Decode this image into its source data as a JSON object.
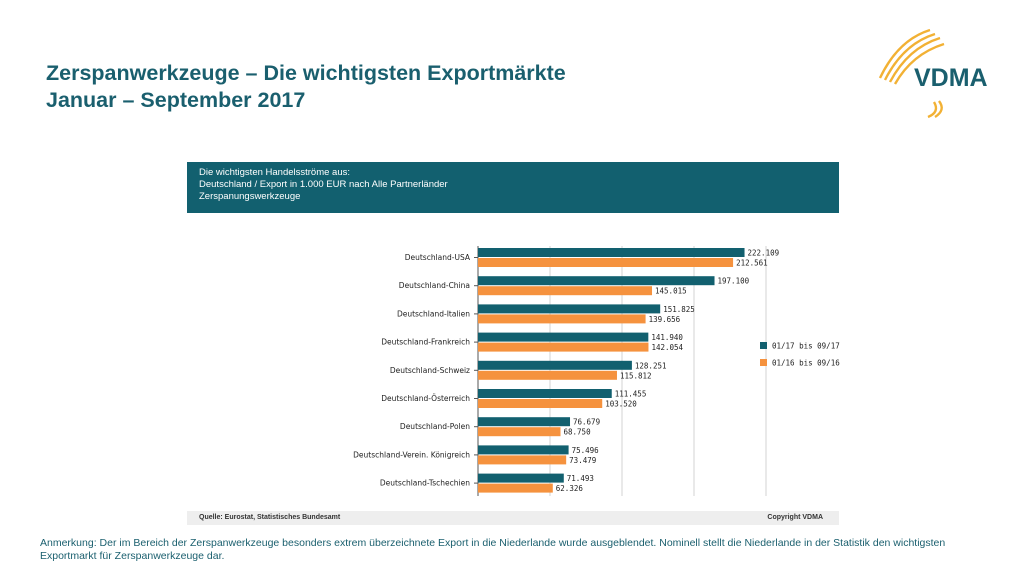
{
  "slide": {
    "title_line1": "Zerspanwerkzeuge – Die wichtigsten Exportmärkte",
    "title_line2": "Januar – September 2017",
    "logo_text": "VDMA",
    "source": "Quelle: Eurostat, Statistisches Bundesamt",
    "copyright": "Copyright VDMA",
    "note": "Anmerkung: Der im Bereich der Zerspanwerkzeuge besonders extrem überzeichnete Export in die Niederlande wurde ausgeblendet. Nominell stellt die Niederlande in der Statistik den wichtigsten Exportmarkt für Zerspanwerkzeuge dar."
  },
  "chart_data": {
    "type": "bar",
    "orientation": "horizontal",
    "header_lines": [
      "Die wichtigsten Handelsströme aus:",
      "Deutschland / Export in 1.000 EUR nach Alle Partnerländer",
      "Zerspanungswerkzeuge"
    ],
    "categories": [
      "Deutschland-USA",
      "Deutschland-China",
      "Deutschland-Italien",
      "Deutschland-Frankreich",
      "Deutschland-Schweiz",
      "Deutschland-Österreich",
      "Deutschland-Polen",
      "Deutschland-Verein. Königreich",
      "Deutschland-Tschechien"
    ],
    "series": [
      {
        "name": "01/17 bis 09/17",
        "color": "#12606f",
        "values": [
          222109,
          197100,
          151825,
          141940,
          128251,
          111455,
          76679,
          75496,
          71493
        ],
        "labels": [
          "222.109",
          "197.100",
          "151.825",
          "141.940",
          "128.251",
          "111.455",
          "76.679",
          "75.496",
          "71.493"
        ]
      },
      {
        "name": "01/16 bis 09/16",
        "color": "#f5923e",
        "values": [
          212561,
          145015,
          139656,
          142054,
          115812,
          103520,
          68750,
          73479,
          62326
        ],
        "labels": [
          "212.561",
          "145.015",
          "139.656",
          "142.054",
          "115.812",
          "103.520",
          "68.750",
          "73.479",
          "62.326"
        ]
      }
    ],
    "xlim": [
      0,
      300000
    ],
    "grid": true,
    "legend_position": "right"
  }
}
